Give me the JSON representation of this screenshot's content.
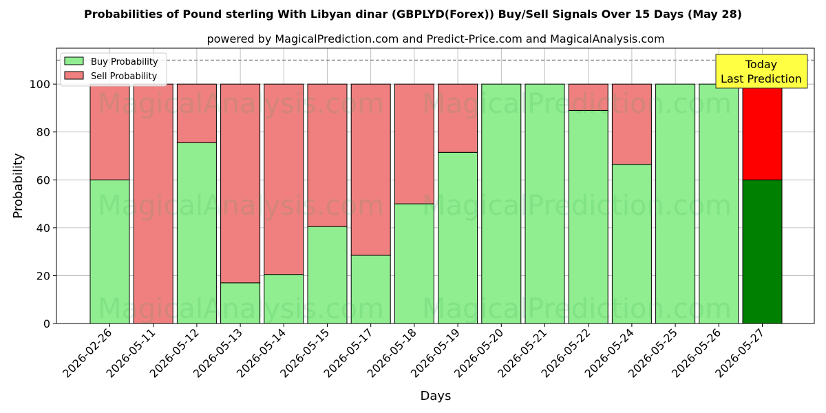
{
  "chart_data": {
    "type": "bar",
    "stacked": true,
    "title": "Probabilities of Pound sterling With Libyan dinar (GBPLYD(Forex)) Buy/Sell Signals Over 15 Days (May 28)",
    "subtitle": "powered by MagicalPrediction.com and Predict-Price.com and MagicalAnalysis.com",
    "xlabel": "Days",
    "ylabel": "Probability",
    "ylim": [
      0,
      115
    ],
    "yticks": [
      0,
      20,
      40,
      60,
      80,
      100
    ],
    "grid": true,
    "legend_position": "top-left",
    "reference_line": 110,
    "categories": [
      "2026-02-26",
      "2026-05-11",
      "2026-05-12",
      "2026-05-13",
      "2026-05-14",
      "2026-05-15",
      "2026-05-17",
      "2026-05-18",
      "2026-05-19",
      "2026-05-20",
      "2026-05-21",
      "2026-05-22",
      "2026-05-24",
      "2026-05-25",
      "2026-05-26",
      "2026-05-27"
    ],
    "series": [
      {
        "name": "Buy Probability",
        "values": [
          60,
          0,
          75.5,
          17,
          20.5,
          40.5,
          28.5,
          50,
          71.5,
          100,
          100,
          89,
          66.5,
          100,
          100,
          60
        ],
        "color": "#90ee90",
        "today_color": "#008000"
      },
      {
        "name": "Sell Probability",
        "values": [
          40,
          100,
          24.5,
          83,
          79.5,
          59.5,
          71.5,
          50,
          28.5,
          0,
          0,
          11,
          33.5,
          0,
          0,
          40
        ],
        "color": "#f08080",
        "today_color": "#ff0000"
      }
    ],
    "annotation": {
      "lines": [
        "Today",
        "Last Prediction"
      ],
      "background": "#ffff44"
    },
    "watermark": [
      "MagicalAnalysis.com",
      "MagicalPrediction.com"
    ]
  }
}
